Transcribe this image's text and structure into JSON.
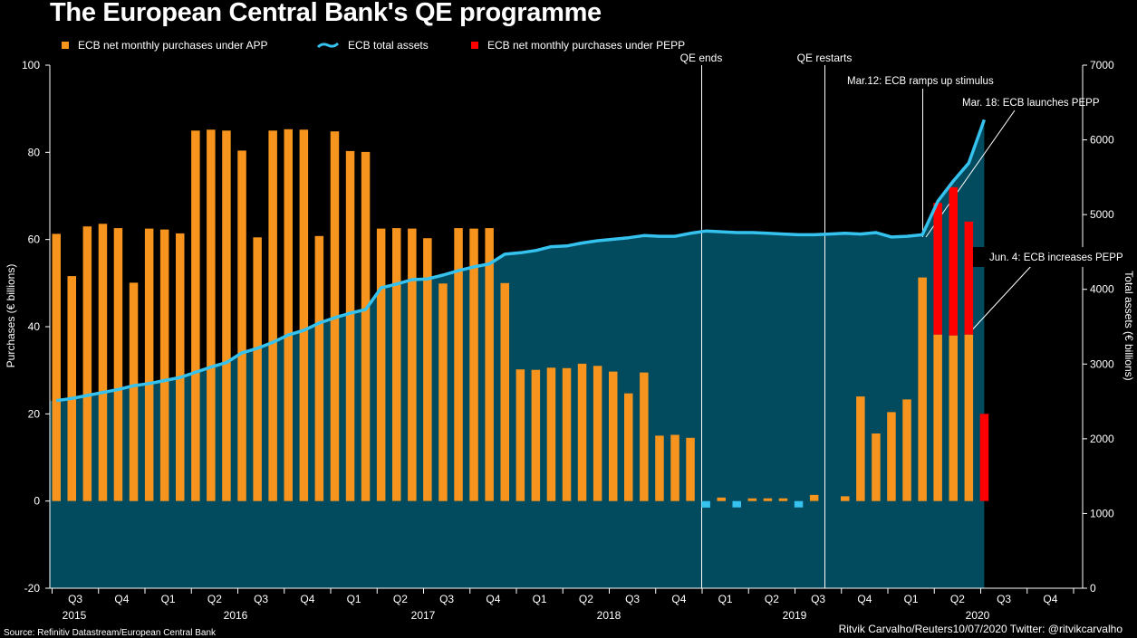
{
  "title": "The European Central Bank's QE programme",
  "legend": {
    "app": "ECB net monthly purchases under APP",
    "assets": "ECB total assets",
    "pepp": "ECB net monthly purchases under PEPP"
  },
  "colors": {
    "app": "#f7941d",
    "pepp": "#ff0000",
    "assets_line": "#36c2ef",
    "assets_fill": "#024b5e",
    "negative": "#36c2ef",
    "vline": "#ffffff"
  },
  "footer": {
    "source": "Source: Refinitiv Datastream/European Central Bank",
    "credit": "Ritvik Carvalho/Reuters10/07/2020 Twitter: @ritvikcarvalho"
  },
  "chart_data": {
    "type": "bar",
    "title": "The European Central Bank's QE programme",
    "ylabel_left": "Purchases (€ billions)",
    "ylabel_right": "Total assets (€ billions)",
    "ylim_left": [
      -20,
      100
    ],
    "ylim_right": [
      0,
      7000
    ],
    "yticks_left": [
      "100",
      "80",
      "60",
      "40",
      "20",
      "0",
      "-20"
    ],
    "yticks_right": [
      "7000",
      "6000",
      "5000",
      "4000",
      "3000",
      "2000",
      "1000",
      "0"
    ],
    "quarter_labels": [
      "Q3",
      "Q4",
      "Q1",
      "Q2",
      "Q3",
      "Q4",
      "Q1",
      "Q2",
      "Q3",
      "Q4",
      "Q1",
      "Q2",
      "Q3",
      "Q4",
      "Q1",
      "Q2",
      "Q3",
      "Q4",
      "Q1",
      "Q2",
      "Q3",
      "Q4"
    ],
    "year_labels": [
      "2015",
      "2016",
      "2017",
      "2018",
      "2019",
      "2020"
    ],
    "app_purchases": [
      61.3,
      51.6,
      63,
      63.6,
      62.6,
      50.1,
      62.5,
      62.3,
      61.4,
      85,
      85.2,
      85,
      80.4,
      60.5,
      85,
      85.3,
      85.2,
      60.8,
      84.8,
      80.3,
      80.1,
      62.5,
      62.6,
      62.5,
      60.3,
      49.9,
      62.6,
      62.5,
      62.6,
      50,
      30.2,
      30.1,
      30.6,
      30.5,
      31.5,
      31,
      29.7,
      24.7,
      29.5,
      15,
      15.2,
      14.5,
      -1.5,
      0.8,
      -0.2,
      0.3,
      0.5,
      0.2,
      -1.3,
      1.4,
      0,
      1.1,
      24,
      15.5,
      20.4,
      23.3,
      51.3,
      38.2,
      38,
      38.2,
      0
    ],
    "pepp_purchases": [
      0,
      0,
      0,
      0,
      0,
      0,
      0,
      0,
      0,
      0,
      0,
      0,
      0,
      0,
      0,
      0,
      0,
      0,
      0,
      0,
      0,
      0,
      0,
      0,
      0,
      0,
      0,
      0,
      0,
      0,
      0,
      0,
      0,
      0,
      0,
      0,
      0,
      0,
      0,
      0,
      0,
      0,
      0,
      0,
      0,
      0,
      0,
      0,
      0,
      0,
      0,
      0,
      0,
      0,
      0,
      0,
      0,
      30.2,
      34,
      25.9,
      20
    ],
    "total_assets": [
      2510,
      2540,
      2580,
      2620,
      2660,
      2710,
      2740,
      2780,
      2820,
      2890,
      2960,
      3020,
      3150,
      3210,
      3290,
      3390,
      3450,
      3550,
      3620,
      3680,
      3730,
      4020,
      4070,
      4130,
      4140,
      4190,
      4250,
      4300,
      4340,
      4470,
      4490,
      4520,
      4570,
      4580,
      4620,
      4650,
      4670,
      4690,
      4720,
      4710,
      4710,
      4750,
      4780,
      4770,
      4760,
      4760,
      4750,
      4740,
      4730,
      4730,
      4740,
      4750,
      4740,
      4760,
      4700,
      4710,
      4730,
      5180,
      5450,
      5690,
      6270
    ],
    "annotations": {
      "qe_ends": "QE ends",
      "qe_restarts": "QE restarts",
      "mar12": "Mar.12: ECB ramps up stimulus",
      "mar18": "Mar. 18: ECB launches PEPP",
      "jun4": "Jun. 4: ECB increases PEPP"
    }
  }
}
